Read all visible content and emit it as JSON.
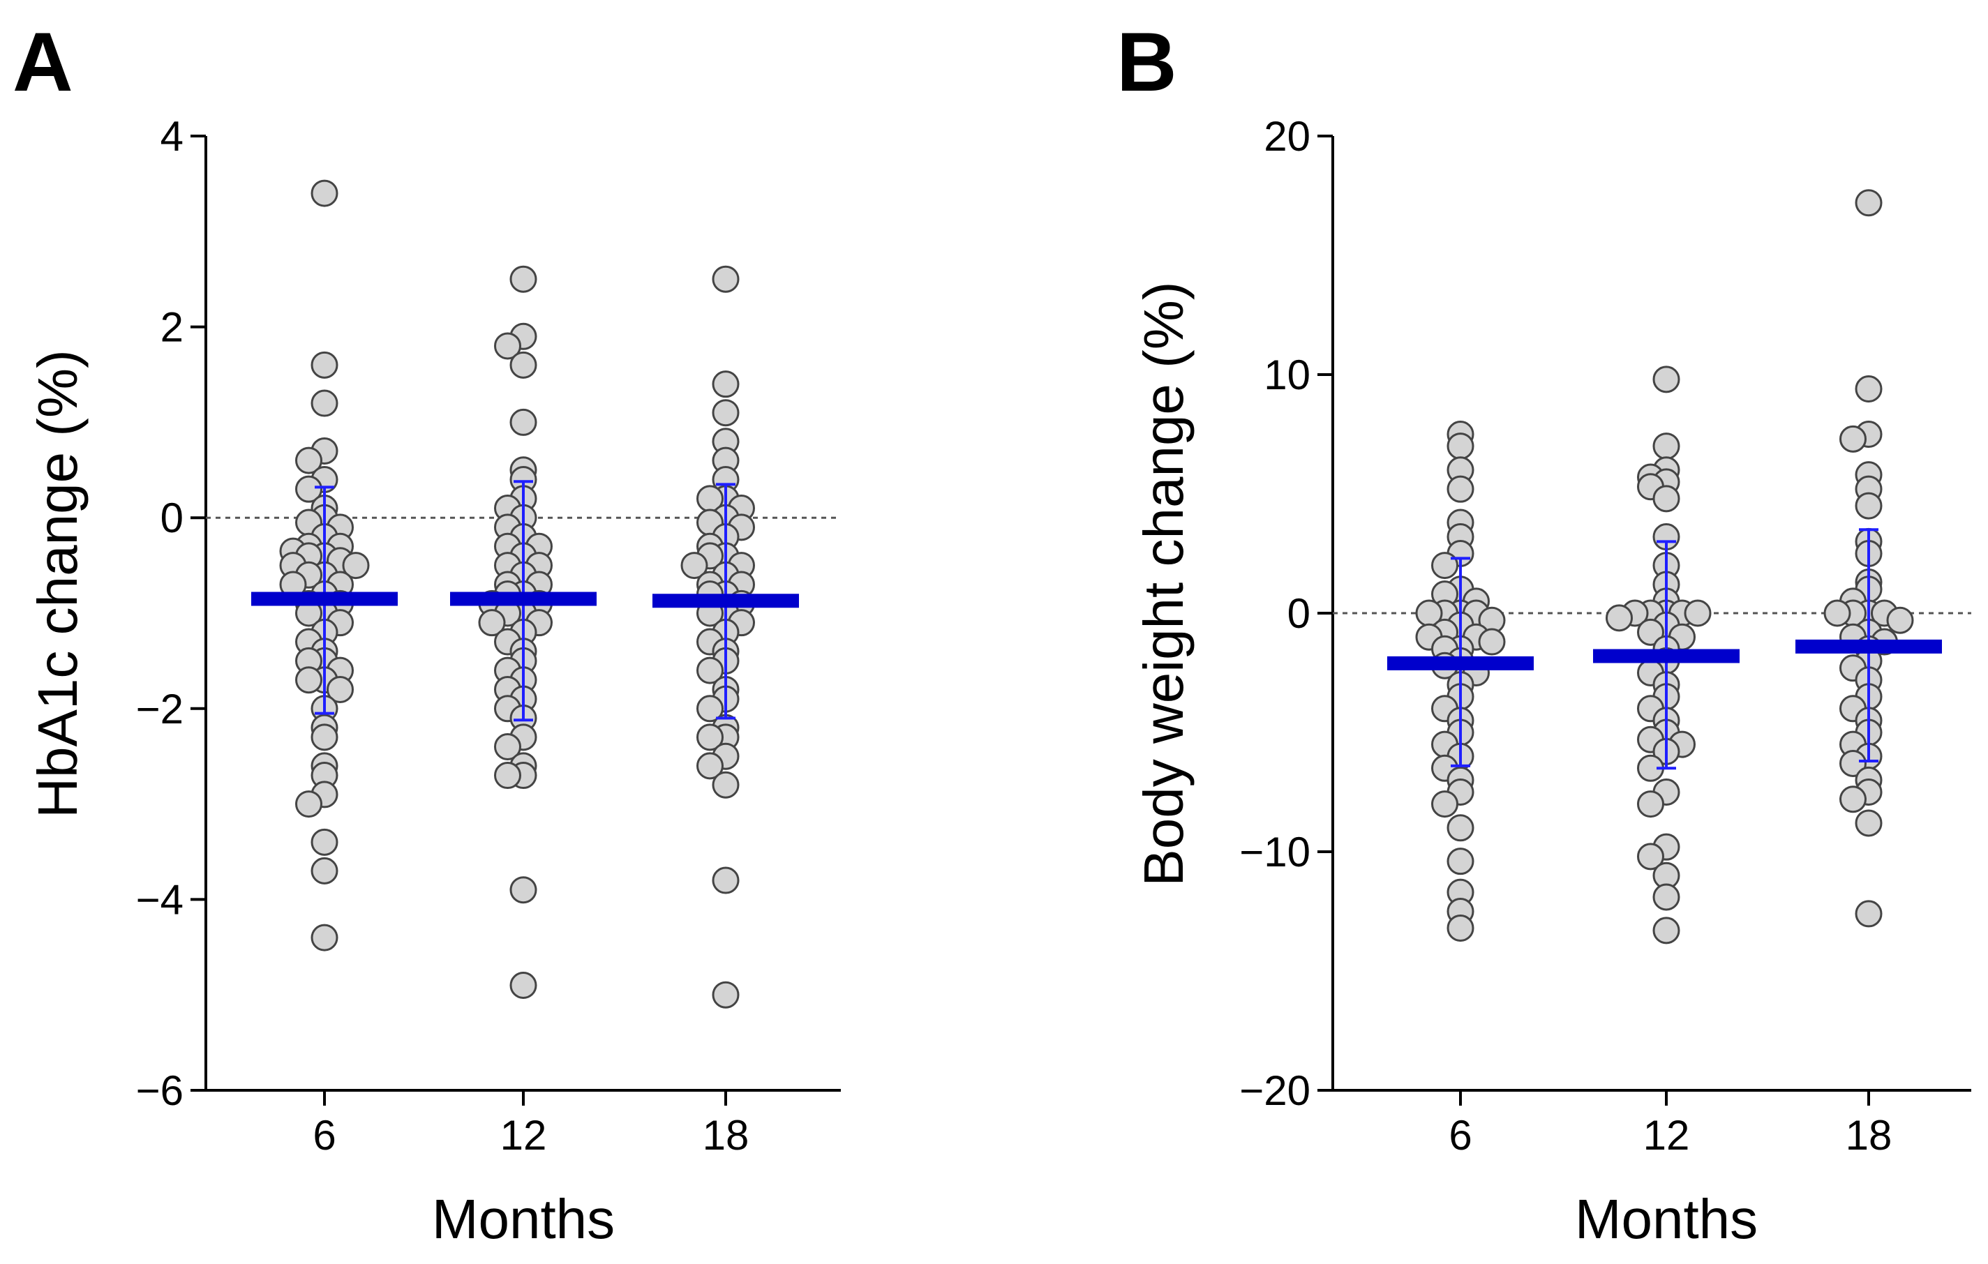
{
  "chart_data": [
    {
      "panel": "A",
      "type": "scatter",
      "subtype": "dot-plot with mean and SD",
      "xlabel": "Months",
      "ylabel": "HbA1c change (%)",
      "ylim": [
        -6,
        4
      ],
      "yticks": [
        4,
        2,
        0,
        -2,
        -4,
        -6
      ],
      "ytick_labels": [
        "4",
        "2",
        "0",
        "−2",
        "−4",
        "−6"
      ],
      "reference_line": 0,
      "categories": [
        "6",
        "12",
        "18"
      ],
      "mean_color": "#0000cc",
      "sd_color": "#1f1fff",
      "point_color": "#d4d4d4",
      "series": [
        {
          "name": "6",
          "mean": -0.85,
          "sd_low": -2.05,
          "sd_high": 0.32,
          "values": [
            3.4,
            1.6,
            1.2,
            0.7,
            0.6,
            0.4,
            0.3,
            0.1,
            0.0,
            -0.05,
            -0.1,
            -0.2,
            -0.3,
            -0.3,
            -0.35,
            -0.4,
            -0.4,
            -0.45,
            -0.5,
            -0.5,
            -0.6,
            -0.6,
            -0.7,
            -0.7,
            -0.8,
            -0.9,
            -0.9,
            -1.0,
            -1.0,
            -1.1,
            -1.2,
            -1.3,
            -1.4,
            -1.5,
            -1.5,
            -1.6,
            -1.7,
            -1.7,
            -1.8,
            -2.0,
            -2.2,
            -2.3,
            -2.6,
            -2.7,
            -2.9,
            -3.0,
            -3.4,
            -3.7,
            -4.4
          ]
        },
        {
          "name": "12",
          "mean": -0.85,
          "sd_low": -2.12,
          "sd_high": 0.38,
          "values": [
            2.5,
            1.9,
            1.8,
            1.6,
            1.0,
            0.5,
            0.4,
            0.2,
            0.1,
            0.0,
            -0.1,
            -0.2,
            -0.3,
            -0.3,
            -0.4,
            -0.5,
            -0.5,
            -0.6,
            -0.7,
            -0.7,
            -0.8,
            -0.8,
            -0.9,
            -0.9,
            -1.0,
            -1.0,
            -1.1,
            -1.1,
            -1.2,
            -1.3,
            -1.4,
            -1.5,
            -1.6,
            -1.7,
            -1.8,
            -1.9,
            -2.0,
            -2.1,
            -2.3,
            -2.4,
            -2.6,
            -2.7,
            -2.7,
            -3.9,
            -4.9
          ]
        },
        {
          "name": "18",
          "mean": -0.87,
          "sd_low": -2.1,
          "sd_high": 0.35,
          "values": [
            2.5,
            1.4,
            1.1,
            0.8,
            0.6,
            0.4,
            0.2,
            0.2,
            0.1,
            0.0,
            -0.05,
            -0.1,
            -0.2,
            -0.3,
            -0.4,
            -0.4,
            -0.5,
            -0.5,
            -0.6,
            -0.7,
            -0.7,
            -0.8,
            -0.8,
            -0.9,
            -1.0,
            -1.0,
            -1.1,
            -1.2,
            -1.3,
            -1.4,
            -1.5,
            -1.6,
            -1.8,
            -1.9,
            -2.0,
            -2.2,
            -2.3,
            -2.3,
            -2.5,
            -2.6,
            -2.8,
            -3.8,
            -5.0
          ]
        }
      ]
    },
    {
      "panel": "B",
      "type": "scatter",
      "subtype": "dot-plot with mean and SD",
      "xlabel": "Months",
      "ylabel": "Body weight change (%)",
      "ylim": [
        -20,
        20
      ],
      "yticks": [
        20,
        10,
        0,
        -10,
        -20
      ],
      "ytick_labels": [
        "20",
        "10",
        "0",
        "−10",
        "−20"
      ],
      "reference_line": 0,
      "categories": [
        "6",
        "12",
        "18"
      ],
      "mean_color": "#0000cc",
      "sd_color": "#1f1fff",
      "point_color": "#d4d4d4",
      "series": [
        {
          "name": "6",
          "mean": -2.1,
          "sd_low": -6.4,
          "sd_high": 2.3,
          "values": [
            7.5,
            7.0,
            6.0,
            5.2,
            3.8,
            3.2,
            2.5,
            2.0,
            1.0,
            0.8,
            0.5,
            0.0,
            0.0,
            0.0,
            0.0,
            -0.3,
            -0.5,
            -0.8,
            -1.0,
            -1.0,
            -1.2,
            -1.5,
            -1.5,
            -2.0,
            -2.2,
            -2.5,
            -3.0,
            -3.5,
            -4.0,
            -4.5,
            -5.0,
            -5.5,
            -6.0,
            -6.5,
            -7.0,
            -7.5,
            -8.0,
            -9.0,
            -10.4,
            -11.7,
            -12.5,
            -13.2
          ]
        },
        {
          "name": "12",
          "mean": -1.8,
          "sd_low": -6.5,
          "sd_high": 3.0,
          "values": [
            9.8,
            7.0,
            6.0,
            5.7,
            5.5,
            5.3,
            4.8,
            3.2,
            2.0,
            1.2,
            0.5,
            0.0,
            0.0,
            0.0,
            0.0,
            0.0,
            -0.2,
            -0.5,
            -0.8,
            -1.0,
            -1.5,
            -2.0,
            -2.5,
            -3.0,
            -3.5,
            -4.0,
            -4.5,
            -5.0,
            -5.3,
            -5.5,
            -5.8,
            -6.5,
            -7.5,
            -8.0,
            -9.8,
            -10.2,
            -11.0,
            -11.9,
            -13.3
          ]
        },
        {
          "name": "18",
          "mean": -1.4,
          "sd_low": -6.2,
          "sd_high": 3.5,
          "values": [
            17.2,
            9.4,
            7.5,
            7.3,
            5.8,
            5.2,
            4.5,
            3.0,
            2.5,
            1.3,
            1.0,
            0.5,
            0.0,
            0.0,
            0.0,
            0.0,
            -0.3,
            -0.8,
            -1.0,
            -1.2,
            -1.5,
            -2.0,
            -2.3,
            -2.8,
            -3.5,
            -4.0,
            -4.5,
            -5.0,
            -5.5,
            -6.0,
            -6.3,
            -7.0,
            -7.5,
            -7.8,
            -8.8,
            -12.6
          ]
        }
      ]
    }
  ]
}
